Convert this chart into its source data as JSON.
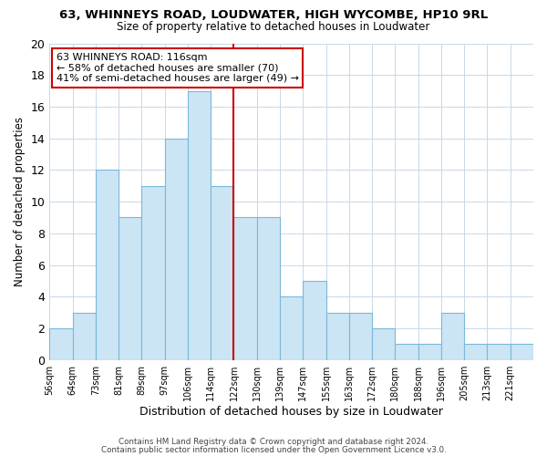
{
  "title": "63, WHINNEYS ROAD, LOUDWATER, HIGH WYCOMBE, HP10 9RL",
  "subtitle": "Size of property relative to detached houses in Loudwater",
  "xlabel": "Distribution of detached houses by size in Loudwater",
  "ylabel": "Number of detached properties",
  "bar_color": "#cce5f5",
  "bar_edge_color": "#7ab8d9",
  "background_color": "#ffffff",
  "grid_color": "#c8d8e8",
  "categories": [
    "56sqm",
    "64sqm",
    "73sqm",
    "81sqm",
    "89sqm",
    "97sqm",
    "106sqm",
    "114sqm",
    "122sqm",
    "130sqm",
    "139sqm",
    "147sqm",
    "155sqm",
    "163sqm",
    "172sqm",
    "180sqm",
    "188sqm",
    "196sqm",
    "205sqm",
    "213sqm",
    "221sqm"
  ],
  "values": [
    2,
    3,
    12,
    9,
    11,
    14,
    17,
    11,
    9,
    9,
    4,
    5,
    3,
    3,
    2,
    1,
    1,
    3,
    1,
    1,
    1
  ],
  "ylim": [
    0,
    20
  ],
  "yticks": [
    0,
    2,
    4,
    6,
    8,
    10,
    12,
    14,
    16,
    18,
    20
  ],
  "property_line_color": "#cc0000",
  "property_line_bin": 8,
  "annotation_title": "63 WHINNEYS ROAD: 116sqm",
  "annotation_line1": "← 58% of detached houses are smaller (70)",
  "annotation_line2": "41% of semi-detached houses are larger (49) →",
  "annotation_box_color": "#ffffff",
  "annotation_box_edge": "#cc0000",
  "footer1": "Contains HM Land Registry data © Crown copyright and database right 2024.",
  "footer2": "Contains public sector information licensed under the Open Government Licence v3.0."
}
